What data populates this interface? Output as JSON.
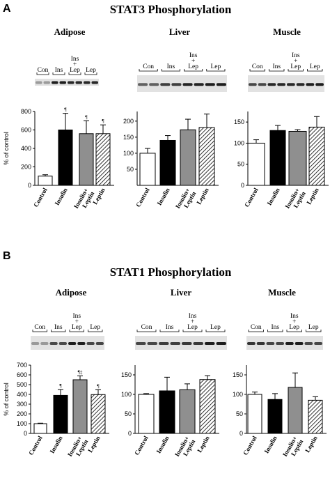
{
  "figure": {
    "panel_a": {
      "letter": "A",
      "title": "STAT3 Phosphorylation"
    },
    "panel_b": {
      "letter": "B",
      "title": "STAT1 Phosphorylation"
    },
    "lane_labels": {
      "con": "Con",
      "ins": "Ins",
      "ins_lep_top": "Ins",
      "ins_lep_plus": "+",
      "ins_lep_bottom": "Lep",
      "lep": "Lep"
    }
  },
  "colors": {
    "control": "#ffffff",
    "insulin": "#000000",
    "insulin_leptin": "#8f8f8f",
    "leptin": "hatched"
  },
  "chart_data": [
    {
      "type": "bar",
      "panel": "A",
      "title": "Adipose",
      "ylabel": "% of control",
      "ylim": [
        0,
        800
      ],
      "yticks": [
        0,
        200,
        400,
        600,
        800
      ],
      "categories": [
        "Control",
        "Insulin",
        "Insulin+\nLeptin",
        "Leptin"
      ],
      "values": [
        100,
        600,
        560,
        560
      ],
      "errors": [
        15,
        180,
        140,
        95
      ],
      "annotations": [
        "",
        "¶",
        "¶",
        "¶"
      ]
    },
    {
      "type": "bar",
      "panel": "A",
      "title": "Liver",
      "ylabel": "",
      "ylim": [
        0,
        230
      ],
      "yticks": [
        50,
        100,
        150,
        200
      ],
      "categories": [
        "Control",
        "Insulin",
        "Insulin+\nLeptin",
        "Leptin"
      ],
      "values": [
        100,
        140,
        173,
        180
      ],
      "errors": [
        15,
        15,
        33,
        42
      ],
      "annotations": [
        "",
        "",
        "",
        ""
      ]
    },
    {
      "type": "bar",
      "panel": "A",
      "title": "Muscle",
      "ylabel": "",
      "ylim": [
        0,
        175
      ],
      "yticks": [
        0,
        50,
        100,
        150
      ],
      "categories": [
        "Control",
        "Insulin",
        "Insulin+\nLeptin",
        "Leptin"
      ],
      "values": [
        100,
        130,
        128,
        138
      ],
      "errors": [
        8,
        12,
        4,
        25
      ],
      "annotations": [
        "",
        "",
        "",
        ""
      ]
    },
    {
      "type": "bar",
      "panel": "B",
      "title": "Adipose",
      "ylabel": "% of control",
      "ylim": [
        0,
        700
      ],
      "yticks": [
        0,
        100,
        200,
        300,
        400,
        500,
        600,
        700
      ],
      "categories": [
        "Control",
        "Insulin",
        "Insulin+\nLeptin",
        "Leptin"
      ],
      "values": [
        100,
        390,
        550,
        398
      ],
      "errors": [
        5,
        60,
        40,
        50
      ],
      "annotations": [
        "",
        "¶",
        "¶‡",
        "¶"
      ]
    },
    {
      "type": "bar",
      "panel": "B",
      "title": "Liver",
      "ylabel": "",
      "ylim": [
        0,
        175
      ],
      "yticks": [
        0,
        50,
        100,
        150
      ],
      "categories": [
        "Control",
        "Insulin",
        "Insulin+\nLeptin",
        "Leptin"
      ],
      "values": [
        100,
        109,
        112,
        138
      ],
      "errors": [
        2,
        35,
        15,
        10
      ],
      "annotations": [
        "",
        "",
        "",
        ""
      ]
    },
    {
      "type": "bar",
      "panel": "B",
      "title": "Muscle",
      "ylabel": "",
      "ylim": [
        0,
        175
      ],
      "yticks": [
        0,
        50,
        100,
        150
      ],
      "categories": [
        "Control",
        "Insulin",
        "Insulin+\nLeptin",
        "Leptin"
      ],
      "values": [
        100,
        87,
        118,
        85
      ],
      "errors": [
        6,
        15,
        37,
        9
      ],
      "annotations": [
        "",
        "",
        "",
        ""
      ]
    }
  ]
}
